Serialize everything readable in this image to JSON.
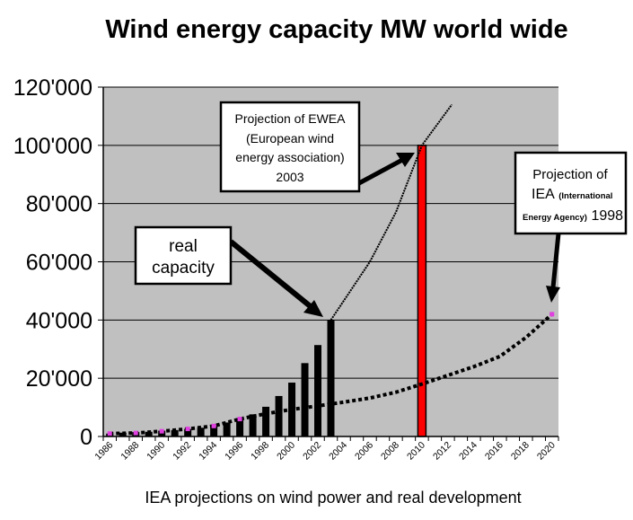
{
  "chart_data": {
    "type": "bar",
    "title": "Wind energy capacity MW world wide",
    "caption": "IEA projections on wind power and real development",
    "xlabel": "",
    "ylabel": "",
    "ylim": [
      0,
      120000
    ],
    "yticks": [
      0,
      20000,
      40000,
      60000,
      80000,
      100000,
      120000
    ],
    "ytick_labels": [
      "0",
      "20'000",
      "40'000",
      "60'000",
      "80'000",
      "100'000",
      "120'000"
    ],
    "categories": [
      1986,
      1987,
      1988,
      1989,
      1990,
      1991,
      1992,
      1993,
      1994,
      1995,
      1996,
      1997,
      1998,
      1999,
      2000,
      2001,
      2002,
      2003,
      2004,
      2005,
      2006,
      2007,
      2008,
      2009,
      2010,
      2011,
      2012,
      2013,
      2014,
      2015,
      2016,
      2017,
      2018,
      2019,
      2020
    ],
    "xtick_labels": [
      "1986",
      "1988",
      "1990",
      "1992",
      "1994",
      "1996",
      "1998",
      "2000",
      "2002",
      "2004",
      "2006",
      "2008",
      "2010",
      "2012",
      "2014",
      "2016",
      "2018",
      "2020"
    ],
    "grid": true,
    "plot_background": "#c0c0c0",
    "series": [
      {
        "name": "real capacity",
        "type": "bar",
        "color": "#000000",
        "x": [
          1986,
          1987,
          1988,
          1989,
          1990,
          1991,
          1992,
          1993,
          1994,
          1995,
          1996,
          1997,
          1998,
          1999,
          2000,
          2001,
          2002,
          2003
        ],
        "values": [
          1000,
          1300,
          1500,
          1600,
          2000,
          2200,
          2600,
          3000,
          3500,
          4800,
          6100,
          7600,
          10200,
          13900,
          18500,
          25200,
          31400,
          40000
        ]
      },
      {
        "name": "Projection of EWEA 2010",
        "type": "bar",
        "color": "#ff0000",
        "x": [
          2010
        ],
        "values": [
          100000
        ]
      },
      {
        "name": "IEA projection 1998",
        "type": "line",
        "style": "dotted-thick",
        "color": "#000000",
        "x": [
          1986,
          1988,
          1990,
          1992,
          1994,
          1996,
          1998,
          2000,
          2002,
          2004,
          2006,
          2008,
          2010,
          2012,
          2014,
          2016,
          2018,
          2020
        ],
        "values": [
          1000,
          1200,
          1800,
          2600,
          3600,
          6000,
          7800,
          9300,
          10500,
          11800,
          13200,
          15200,
          18000,
          21000,
          24000,
          27500,
          34000,
          42000
        ]
      },
      {
        "name": "EWEA projection 2003",
        "type": "line",
        "style": "dotted-thin",
        "color": "#000000",
        "x": [
          2003,
          2006,
          2008,
          2010,
          2012.3
        ],
        "values": [
          40000,
          60000,
          77000,
          100000,
          114000
        ]
      }
    ],
    "annotations": [
      {
        "id": "real",
        "lines": [
          "real",
          "capacity"
        ]
      },
      {
        "id": "ewea",
        "lines": [
          "Projection of EWEA",
          "(European wind",
          "energy association)",
          "2003"
        ]
      },
      {
        "id": "iea",
        "line1": "Projection of",
        "line2_big": "IEA",
        "line2_small": "(International",
        "line3_small": "Energy Agency)",
        "line3_big": "1998"
      }
    ]
  }
}
